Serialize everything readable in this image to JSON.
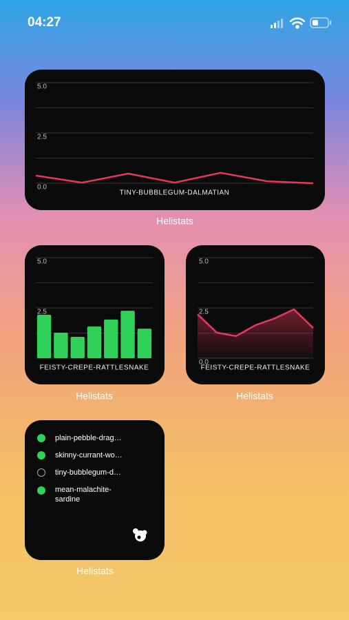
{
  "status_bar": {
    "time": "04:27"
  },
  "chart_data": [
    {
      "type": "line",
      "title": "TINY-BUBBLEGUM-DALMATIAN",
      "caption": "Helistats",
      "color": "#e8375a",
      "values": [
        0.38,
        0.03,
        0.48,
        0.03,
        0.52,
        0.1,
        0.0
      ],
      "ylim": [
        0,
        5
      ],
      "yticks": [
        {
          "value": 0,
          "label": "0.0"
        },
        {
          "value": 2.5,
          "label": "2.5"
        },
        {
          "value": 5,
          "label": "5.0"
        }
      ],
      "grid": true
    },
    {
      "type": "bar",
      "title": "FEISTY-CREPE-RATTLESNAKE",
      "caption": "Helistats",
      "color": "#30d158",
      "values": [
        2.16,
        1.27,
        1.06,
        1.58,
        1.92,
        2.36,
        1.47
      ],
      "ylim": [
        0,
        5
      ],
      "yticks": [
        {
          "value": 2.5,
          "label": "2.5"
        },
        {
          "value": 5,
          "label": "5.0"
        }
      ],
      "grid": true
    },
    {
      "type": "area",
      "title": "FEISTY-CREPE-RATTLESNAKE",
      "caption": "Helistats",
      "color": "#e8375a",
      "values": [
        2.19,
        1.27,
        1.1,
        1.64,
        1.98,
        2.43,
        1.5
      ],
      "ylim": [
        0,
        5
      ],
      "yticks": [
        {
          "value": 0,
          "label": "0.0"
        },
        {
          "value": 2.5,
          "label": "2.5"
        },
        {
          "value": 5,
          "label": "5.0"
        }
      ],
      "grid": true
    }
  ],
  "list_widget": {
    "caption": "Helistats",
    "items": [
      {
        "text": "plain-pebble-drag…",
        "active": true
      },
      {
        "text": "skinny-currant-wo…",
        "active": true
      },
      {
        "text": "tiny-bubblegum-d…",
        "active": false
      },
      {
        "text": "mean-malachite-sardine",
        "active": true
      }
    ]
  }
}
